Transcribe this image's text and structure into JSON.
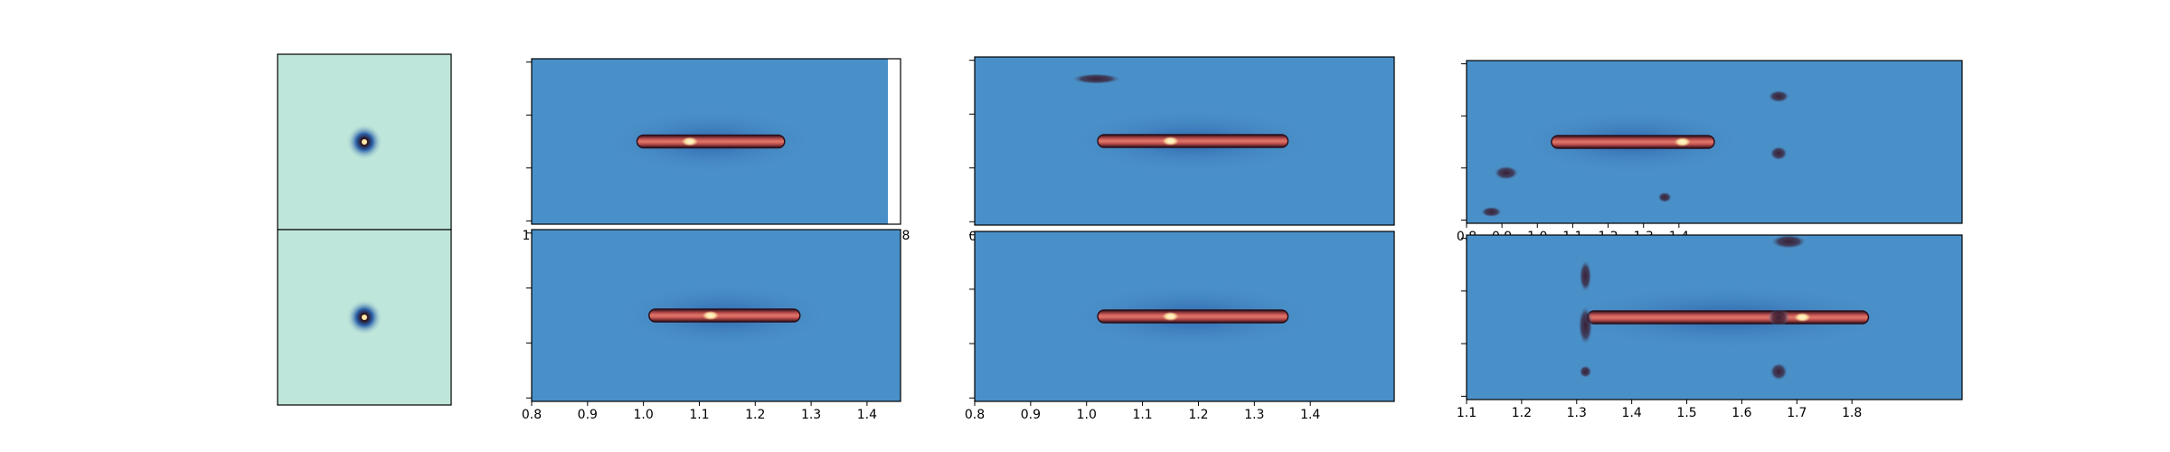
{
  "figure": {
    "background": "#ffffff",
    "frame_color": "#000000"
  },
  "colors": {
    "thumb_background": "#bfe6da",
    "panel_background": "#4a90c8",
    "halo": "#2a5fa8",
    "streak_dark": "#2b0f1a",
    "streak_core": "#c0504f",
    "hotspot": "#ffe8a8",
    "blob": "#3a2035"
  },
  "chart_data": [
    {
      "type": "heatmap",
      "panel": "thumbnail-top",
      "colormap": "teal-to-dark",
      "feature": "point-source",
      "source_center": [
        0.5,
        0.5
      ],
      "x_ticks": [],
      "y_ticks": []
    },
    {
      "type": "heatmap",
      "panel": "thumbnail-bottom",
      "colormap": "teal-to-dark",
      "feature": "point-source",
      "source_center": [
        0.5,
        0.5
      ],
      "x_ticks": [],
      "y_ticks": []
    },
    {
      "type": "heatmap",
      "panel": "column-1-top",
      "xlim": [
        0.8,
        1.5
      ],
      "x_ticks": [],
      "x_tick_labels_visible": [
        "1",
        "8"
      ],
      "y_tick_count": 4,
      "streak": {
        "x_start": 1.0,
        "x_end": 1.28,
        "hotspot_x": 1.1
      }
    },
    {
      "type": "heatmap",
      "panel": "column-1-bottom",
      "xlim": [
        0.8,
        1.46
      ],
      "x_ticks": [
        "0.8",
        "0.9",
        "1.0",
        "1.1",
        "1.2",
        "1.3",
        "1.4"
      ],
      "y_tick_count": 4,
      "streak": {
        "x_start": 1.01,
        "x_end": 1.28,
        "hotspot_x": 1.12
      }
    },
    {
      "type": "heatmap",
      "panel": "column-2-top",
      "xlim": [
        0.8,
        1.55
      ],
      "x_ticks": [],
      "x_tick_labels_visible": [
        "0"
      ],
      "y_tick_count": 4,
      "streak": {
        "x_start": 1.02,
        "x_end": 1.36,
        "hotspot_x": 1.15
      }
    },
    {
      "type": "heatmap",
      "panel": "column-2-bottom",
      "xlim": [
        0.8,
        1.55
      ],
      "x_ticks": [
        "0.8",
        "0.9",
        "1.0",
        "1.1",
        "1.2",
        "1.3",
        "1.4"
      ],
      "y_tick_count": 4,
      "streak": {
        "x_start": 1.02,
        "x_end": 1.36,
        "hotspot_x": 1.15
      }
    },
    {
      "type": "heatmap",
      "panel": "column-3-top",
      "xlim": [
        0.8,
        2.2
      ],
      "x_ticks": [
        "0.8",
        "0.9",
        "1.0",
        "1.1",
        "1.2",
        "1.3",
        "1.4"
      ],
      "y_tick_count": 4,
      "streak": {
        "x_start": 1.04,
        "x_end": 1.5,
        "hotspot_x": 1.41
      }
    },
    {
      "type": "heatmap",
      "panel": "column-3-bottom",
      "xlim": [
        1.1,
        2.0
      ],
      "x_ticks": [
        "1.1",
        "1.2",
        "1.3",
        "1.4",
        "1.5",
        "1.6",
        "1.7",
        "1.8"
      ],
      "y_tick_count": 4,
      "streak": {
        "x_start": 1.32,
        "x_end": 1.83,
        "hotspot_x": 1.71
      }
    }
  ]
}
